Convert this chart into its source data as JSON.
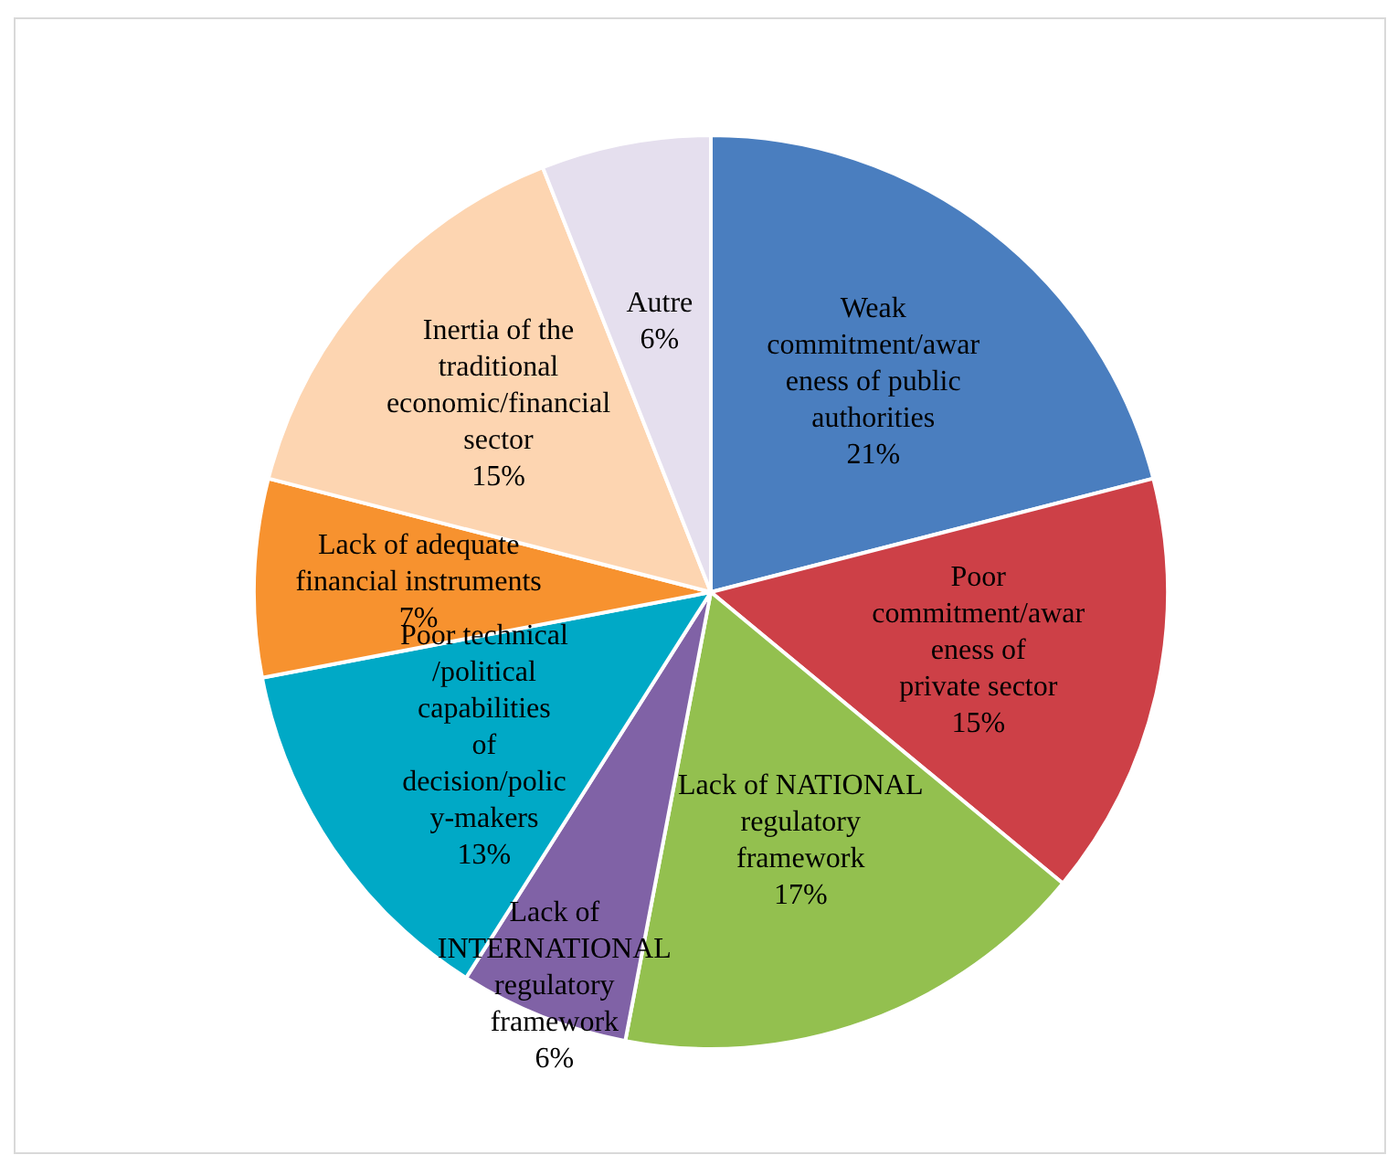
{
  "chart_data": {
    "type": "pie",
    "categories": [
      "Weak commitment/awareness of public authorities",
      "Poor commitment/awareness of private sector",
      "Lack of NATIONAL regulatory framework",
      "Lack of INTERNATIONAL regulatory framework",
      "Poor technical /political capabilities of decision/policy-makers",
      "Lack of adequate financial instruments",
      "Inertia of the traditional economic/financial sector",
      "Autre"
    ],
    "values": [
      21,
      15,
      17,
      6,
      13,
      7,
      15,
      6
    ],
    "colors": [
      "#4a7ebf",
      "#cd4047",
      "#93c04f",
      "#8062a6",
      "#00a9c6",
      "#f7922f",
      "#fdd5b1",
      "#e5dfee"
    ],
    "value_labels": [
      "21%",
      "15%",
      "17%",
      "6%",
      "13%",
      "7%",
      "15%",
      "6%"
    ]
  }
}
